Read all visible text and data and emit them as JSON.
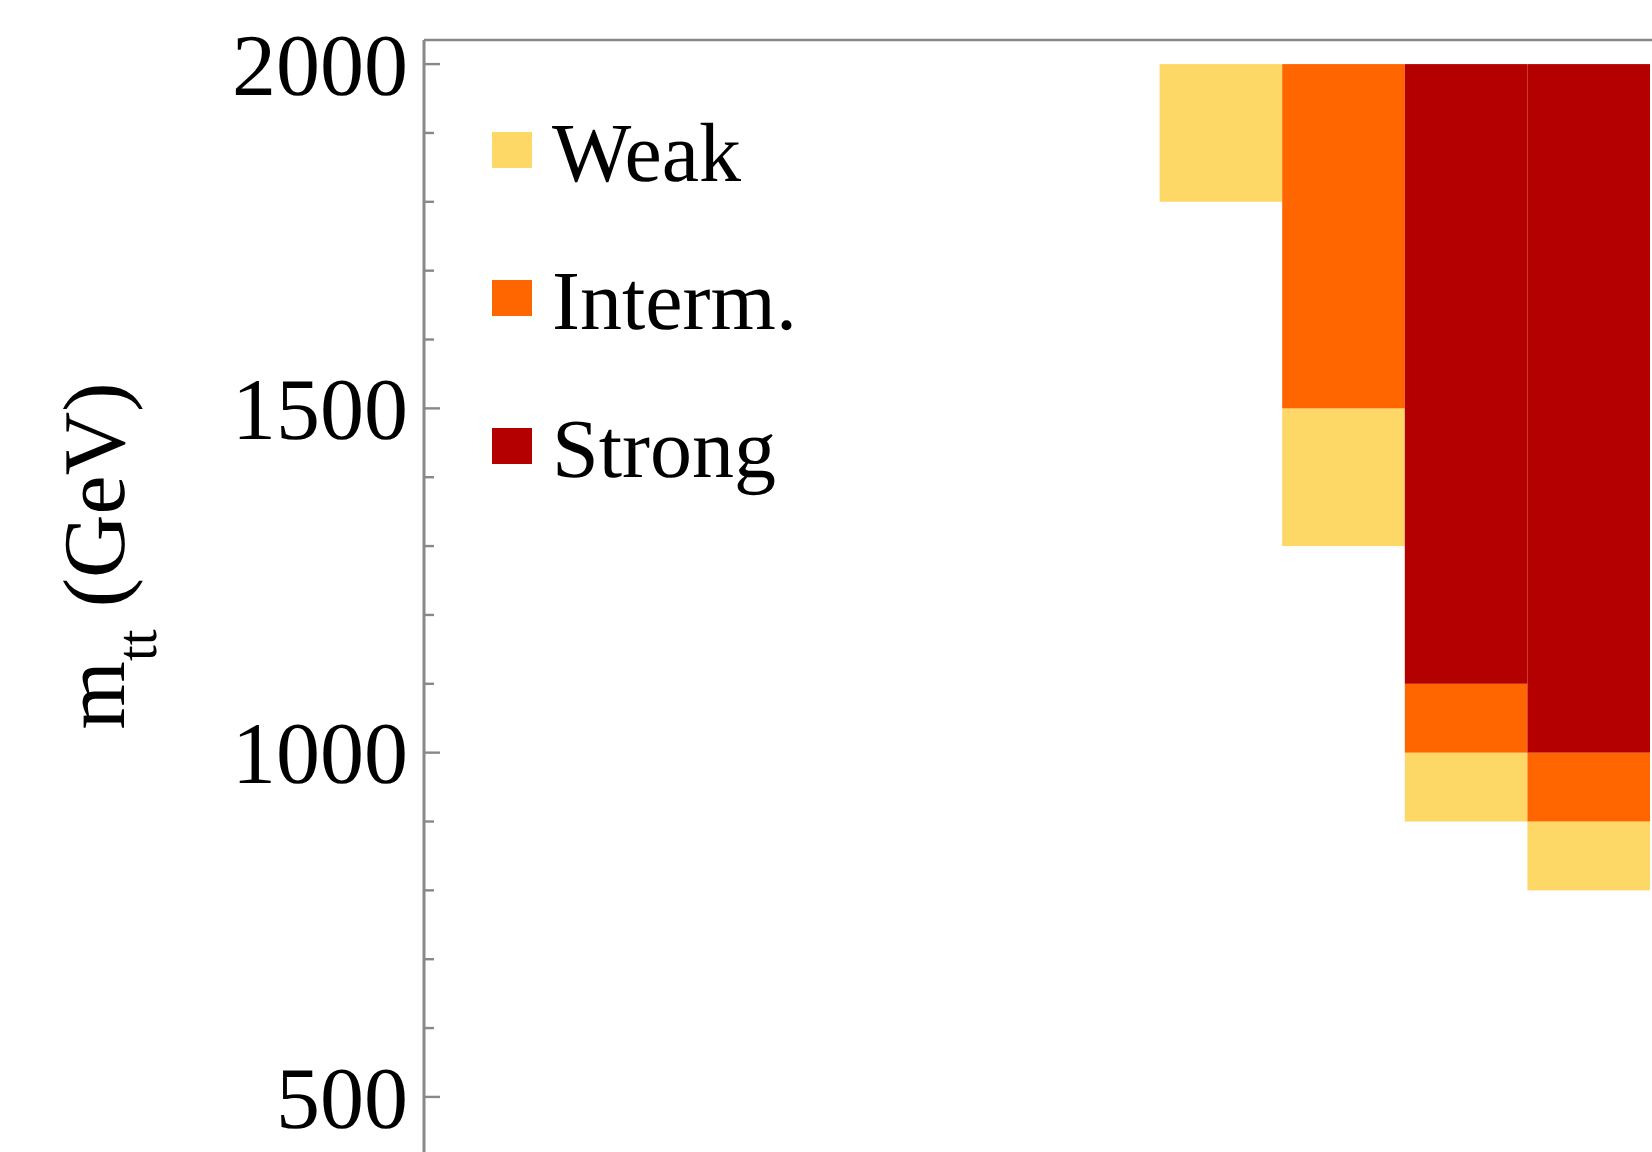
{
  "chart_data": {
    "type": "bar",
    "ylabel": "m$_{tt}$ (GeV)",
    "categories": [
      null,
      null,
      null,
      null,
      null,
      null,
      null,
      null,
      null,
      null
    ],
    "series": [
      {
        "name": "Weak",
        "color": "#fed866",
        "base": [
          null,
          null,
          null,
          null,
          null,
          null,
          1800,
          1300,
          900,
          800
        ],
        "values": [
          null,
          null,
          null,
          null,
          null,
          null,
          200,
          200,
          100,
          100
        ]
      },
      {
        "name": "Interm.",
        "color": "#ff6600",
        "base": [
          null,
          null,
          null,
          null,
          null,
          null,
          null,
          1500,
          1000,
          900
        ],
        "values": [
          null,
          null,
          null,
          null,
          null,
          null,
          null,
          500,
          100,
          100
        ]
      },
      {
        "name": "Strong",
        "color": "#b50000",
        "base": [
          null,
          null,
          null,
          null,
          null,
          null,
          null,
          null,
          1100,
          1000
        ],
        "values": [
          null,
          null,
          null,
          null,
          null,
          null,
          null,
          null,
          900,
          1000
        ]
      }
    ],
    "ylim": [
      420,
      2035
    ],
    "yticks": [
      500,
      {
        "value": 600,
        "label": null
      },
      {
        "value": 700,
        "label": null
      },
      {
        "value": 800,
        "label": null
      },
      {
        "value": 900,
        "label": null
      },
      1000,
      {
        "value": 1100,
        "label": null
      },
      {
        "value": 1200,
        "label": null
      },
      {
        "value": 1300,
        "label": null
      },
      {
        "value": 1400,
        "label": null
      },
      1500,
      {
        "value": 1600,
        "label": null
      },
      {
        "value": 1700,
        "label": null
      },
      {
        "value": 1800,
        "label": null
      },
      {
        "value": 1900,
        "label": null
      },
      2000
    ],
    "legend": "top left"
  }
}
